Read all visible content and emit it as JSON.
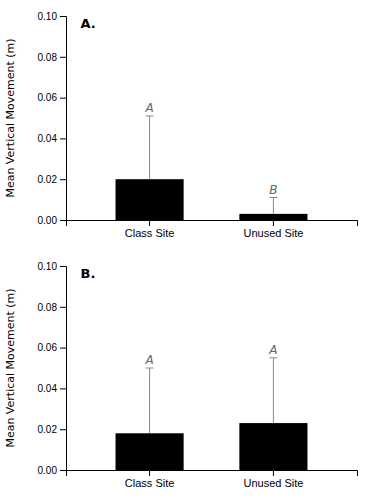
{
  "chart_data": [
    {
      "type": "bar",
      "title": "A.",
      "categories": [
        "Class Site",
        "Unused Site"
      ],
      "values": [
        0.02,
        0.003
      ],
      "errors": [
        0.031,
        0.008
      ],
      "annotations": [
        "A",
        "B"
      ],
      "y_label": "Mean Vertical Movement (m)",
      "color": "#000000",
      "ylim": [
        0,
        0.1
      ],
      "yticks": [
        {
          "value": 0.0,
          "label": "0.00"
        },
        0.02,
        0.04,
        0.06,
        0.08,
        {
          "value": 0.1,
          "label": "0.10"
        }
      ],
      "grid": false
    },
    {
      "type": "bar",
      "title": "B.",
      "categories": [
        "Class Site",
        "Unused Site"
      ],
      "values": [
        0.018,
        0.023
      ],
      "errors": [
        0.032,
        0.032
      ],
      "annotations": [
        "A",
        "A"
      ],
      "y_label": "Mean Vertical Movement (m)",
      "color": "#000000",
      "ylim": [
        0,
        0.1
      ],
      "yticks": [
        {
          "value": 0.0,
          "label": "0.00"
        },
        0.02,
        0.04,
        0.06,
        0.08,
        {
          "value": 0.1,
          "label": "0.10"
        }
      ],
      "grid": false
    }
  ]
}
